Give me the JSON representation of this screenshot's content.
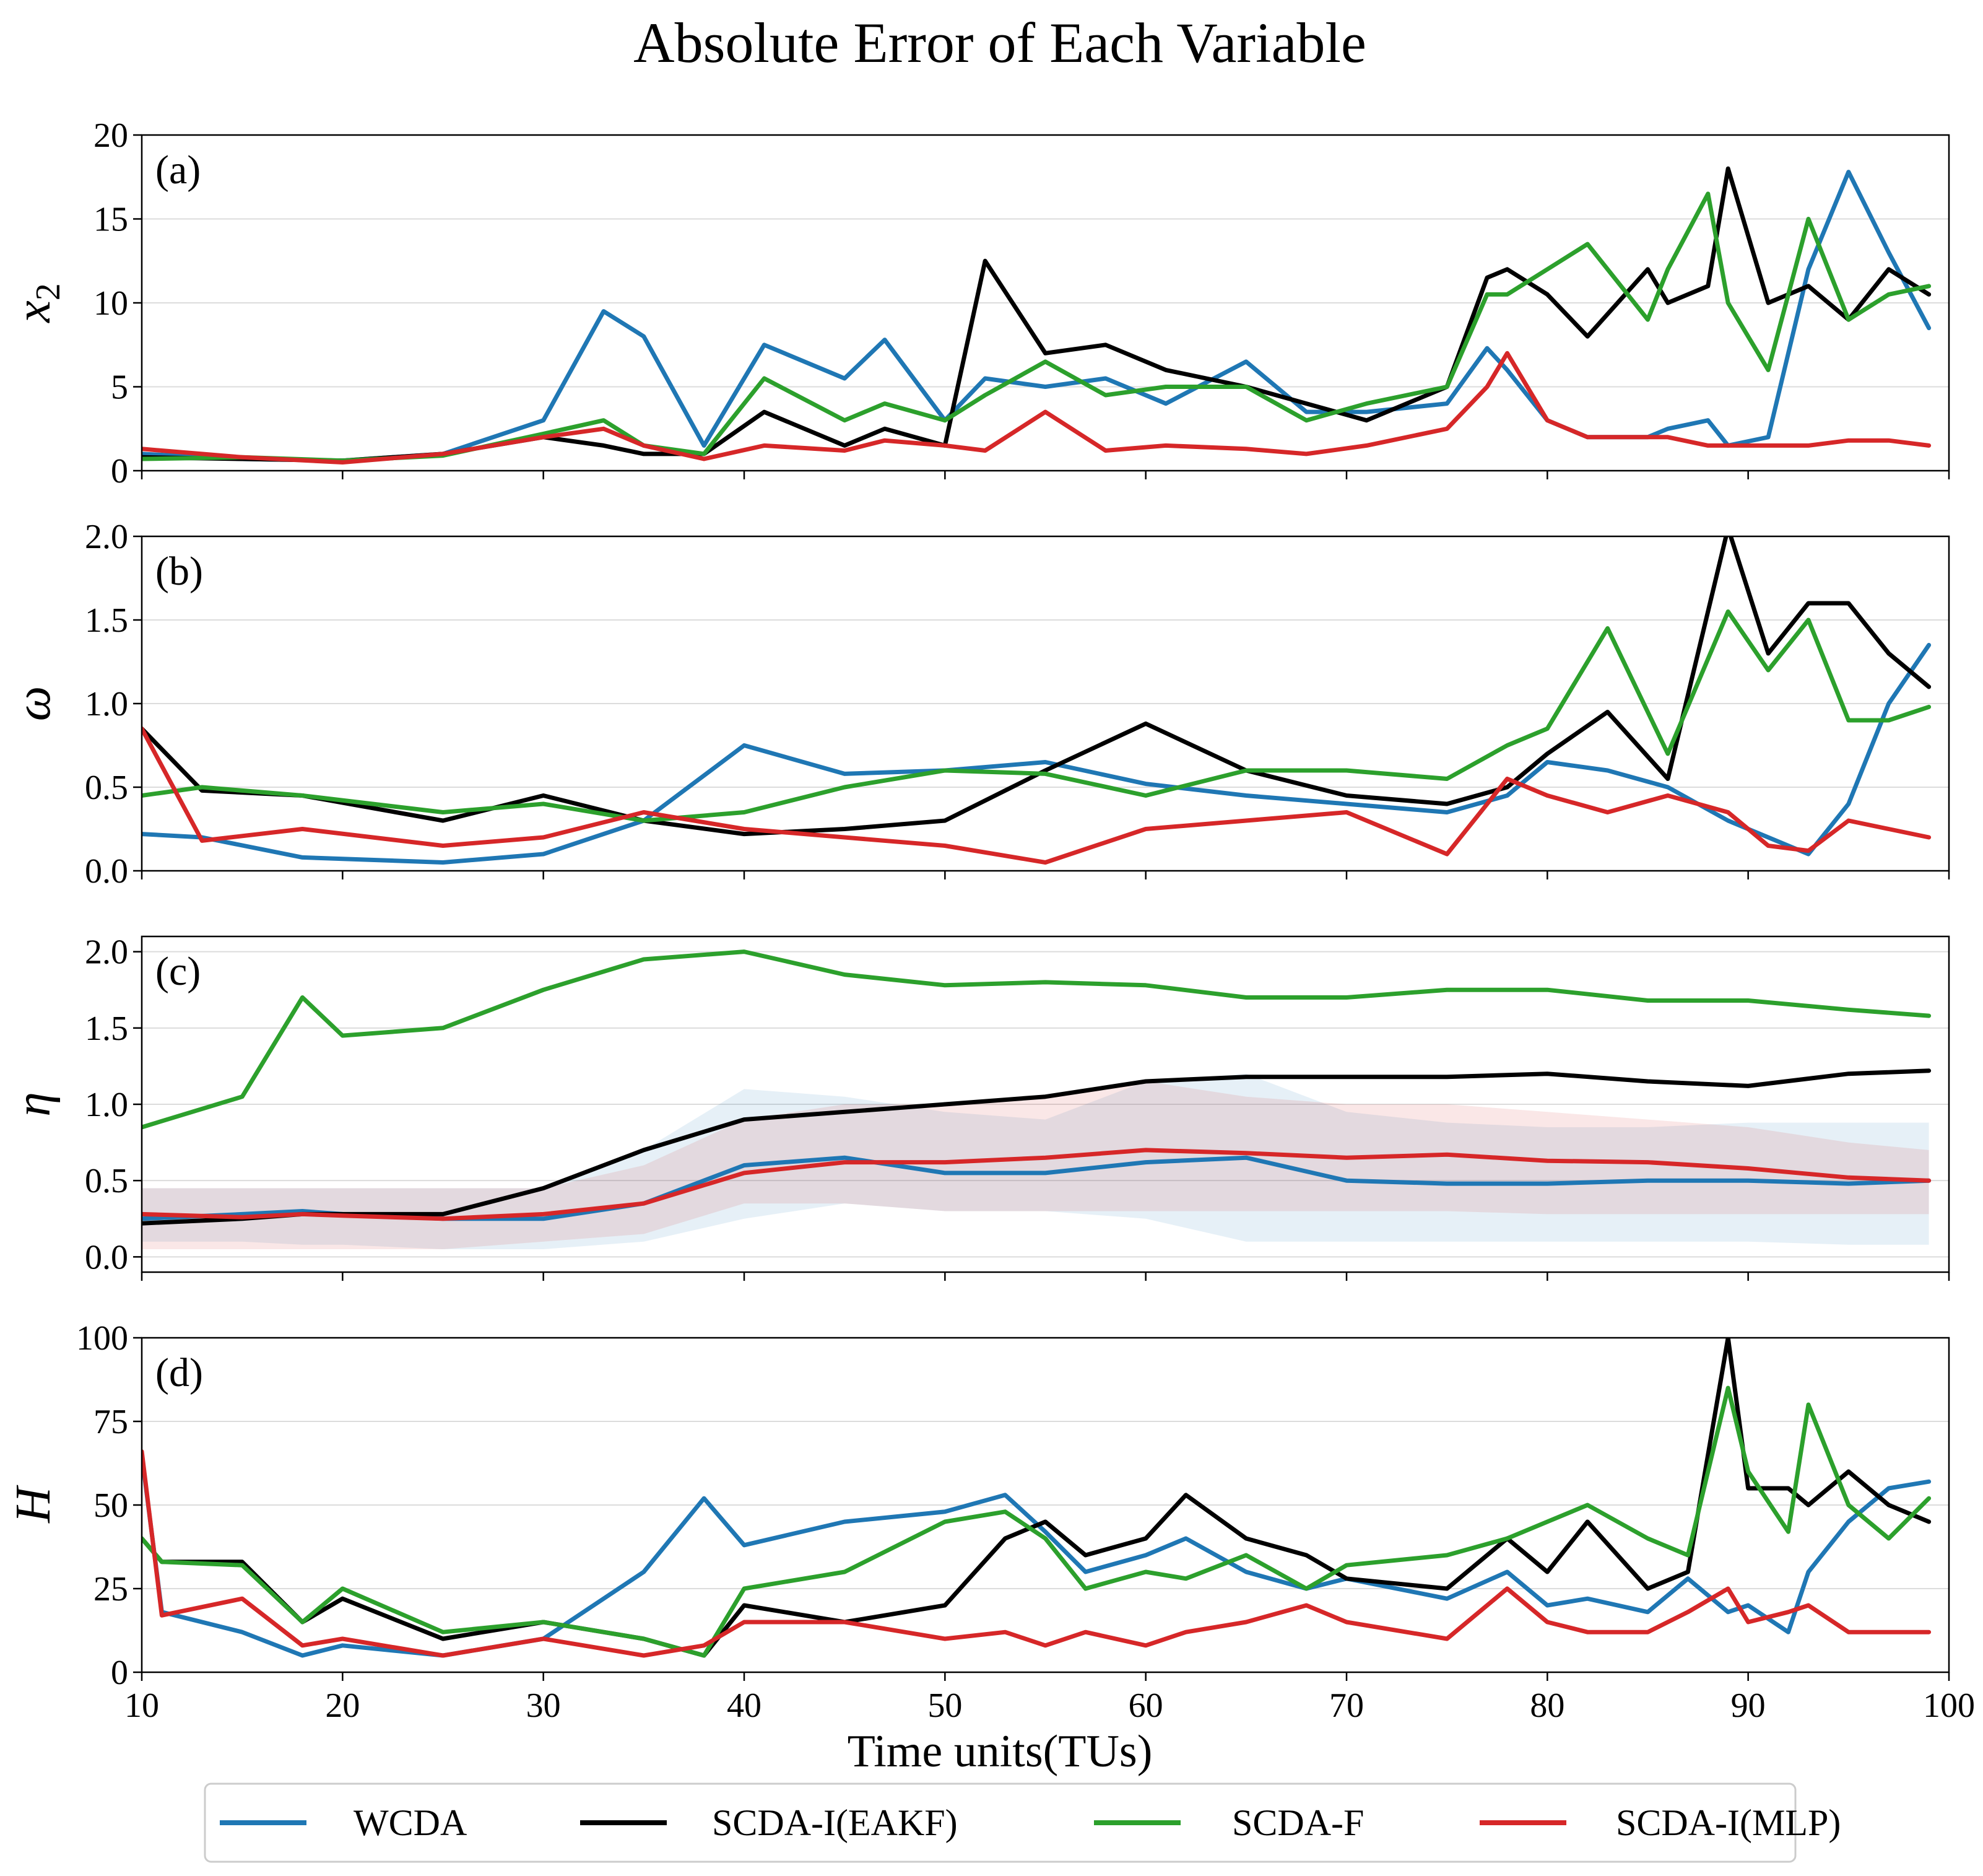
{
  "chart_data": {
    "type": "line",
    "title": "Absolute Error of Each Variable",
    "xlabel": "Time units(TUs)",
    "xlim": [
      10,
      100
    ],
    "xticks": [
      "10",
      "20",
      "30",
      "40",
      "50",
      "60",
      "70",
      "80",
      "90",
      "100"
    ],
    "legend": {
      "placement": "bottom-center",
      "entries": [
        "WCDA",
        "SCDA-I(EAKF)",
        "SCDA-F",
        "SCDA-I(MLP)"
      ]
    },
    "colors": {
      "WCDA": "#1f77b4",
      "SCDA-I(EAKF)": "#000000",
      "SCDA-F": "#2ca02c",
      "SCDA-I(MLP)": "#d62728"
    },
    "panels": [
      {
        "label": "(a)",
        "ylabel": "x",
        "ylabel_sub": "2",
        "ylim": [
          0,
          20
        ],
        "yticks": [
          "0",
          "5",
          "10",
          "15",
          "20"
        ],
        "x": [
          10,
          15,
          20,
          25,
          30,
          33,
          35,
          38,
          41,
          45,
          47,
          50,
          52,
          55,
          58,
          61,
          65,
          68,
          71,
          75,
          77,
          78,
          80,
          82,
          85,
          86,
          88,
          89,
          91,
          93,
          95,
          97,
          99
        ],
        "series": [
          {
            "name": "WCDA",
            "values": [
              1.0,
              0.7,
              0.6,
              1.0,
              3.0,
              9.5,
              8.0,
              1.5,
              7.5,
              5.5,
              7.8,
              3.0,
              5.5,
              5.0,
              5.5,
              4.0,
              6.5,
              3.5,
              3.5,
              4.0,
              7.3,
              6.0,
              3.0,
              2.0,
              2.0,
              2.5,
              3.0,
              1.5,
              2.0,
              12.0,
              17.8,
              13.0,
              8.5
            ]
          },
          {
            "name": "SCDA-I(EAKF)",
            "values": [
              0.8,
              0.7,
              0.6,
              1.0,
              2.0,
              1.5,
              1.0,
              1.0,
              3.5,
              1.5,
              2.5,
              1.5,
              12.5,
              7.0,
              7.5,
              6.0,
              5.0,
              4.0,
              3.0,
              5.0,
              11.5,
              12.0,
              10.5,
              8.0,
              12.0,
              10.0,
              11.0,
              18.0,
              10.0,
              11.0,
              9.0,
              12.0,
              10.5
            ]
          },
          {
            "name": "SCDA-F",
            "values": [
              0.7,
              0.8,
              0.6,
              0.9,
              2.2,
              3.0,
              1.5,
              1.0,
              5.5,
              3.0,
              4.0,
              3.0,
              4.5,
              6.5,
              4.5,
              5.0,
              5.0,
              3.0,
              4.0,
              5.0,
              10.5,
              10.5,
              12.0,
              13.5,
              9.0,
              12.0,
              16.5,
              10.0,
              6.0,
              15.0,
              9.0,
              10.5,
              11.0
            ]
          },
          {
            "name": "SCDA-I(MLP)",
            "values": [
              1.3,
              0.8,
              0.5,
              1.0,
              2.0,
              2.5,
              1.5,
              0.7,
              1.5,
              1.2,
              1.8,
              1.5,
              1.2,
              3.5,
              1.2,
              1.5,
              1.3,
              1.0,
              1.5,
              2.5,
              5.0,
              7.0,
              3.0,
              2.0,
              2.0,
              2.0,
              1.5,
              1.5,
              1.5,
              1.5,
              1.8,
              1.8,
              1.5
            ]
          }
        ]
      },
      {
        "label": "(b)",
        "ylabel": "ω",
        "ylabel_sub": "",
        "ylim": [
          0,
          2
        ],
        "yticks": [
          "0.0",
          "0.5",
          "1.0",
          "1.5",
          "2.0"
        ],
        "x": [
          10,
          13,
          18,
          25,
          30,
          35,
          40,
          45,
          50,
          55,
          60,
          65,
          70,
          75,
          78,
          80,
          83,
          86,
          89,
          91,
          93,
          95,
          97,
          99
        ],
        "series": [
          {
            "name": "WCDA",
            "values": [
              0.22,
              0.2,
              0.08,
              0.05,
              0.1,
              0.3,
              0.75,
              0.58,
              0.6,
              0.65,
              0.52,
              0.45,
              0.4,
              0.35,
              0.45,
              0.65,
              0.6,
              0.5,
              0.3,
              0.2,
              0.1,
              0.4,
              1.0,
              1.35
            ]
          },
          {
            "name": "SCDA-I(EAKF)",
            "values": [
              0.85,
              0.48,
              0.45,
              0.3,
              0.45,
              0.3,
              0.22,
              0.25,
              0.3,
              0.6,
              0.88,
              0.6,
              0.45,
              0.4,
              0.5,
              0.7,
              0.95,
              0.55,
              2.05,
              1.3,
              1.6,
              1.6,
              1.3,
              1.1
            ]
          },
          {
            "name": "SCDA-F",
            "values": [
              0.45,
              0.5,
              0.45,
              0.35,
              0.4,
              0.3,
              0.35,
              0.5,
              0.6,
              0.58,
              0.45,
              0.6,
              0.6,
              0.55,
              0.75,
              0.85,
              1.45,
              0.7,
              1.55,
              1.2,
              1.5,
              0.9,
              0.9,
              0.98
            ]
          },
          {
            "name": "SCDA-I(MLP)",
            "values": [
              0.85,
              0.18,
              0.25,
              0.15,
              0.2,
              0.35,
              0.25,
              0.2,
              0.15,
              0.05,
              0.25,
              0.3,
              0.35,
              0.1,
              0.55,
              0.45,
              0.35,
              0.45,
              0.35,
              0.15,
              0.12,
              0.3,
              0.25,
              0.2
            ]
          }
        ]
      },
      {
        "label": "(c)",
        "ylabel": "η",
        "ylabel_sub": "",
        "ylim": [
          -0.1,
          2.1
        ],
        "yticks": [
          "0.0",
          "0.5",
          "1.0",
          "1.5",
          "2.0"
        ],
        "x": [
          10,
          15,
          18,
          20,
          25,
          30,
          35,
          40,
          45,
          50,
          55,
          60,
          65,
          70,
          75,
          80,
          85,
          90,
          95,
          99
        ],
        "series": [
          {
            "name": "WCDA",
            "values": [
              0.25,
              0.28,
              0.3,
              0.28,
              0.25,
              0.25,
              0.35,
              0.6,
              0.65,
              0.55,
              0.55,
              0.62,
              0.65,
              0.5,
              0.48,
              0.48,
              0.5,
              0.5,
              0.48,
              0.5
            ]
          },
          {
            "name": "SCDA-I(EAKF)",
            "values": [
              0.22,
              0.25,
              0.28,
              0.28,
              0.28,
              0.45,
              0.7,
              0.9,
              0.95,
              1.0,
              1.05,
              1.15,
              1.18,
              1.18,
              1.18,
              1.2,
              1.15,
              1.12,
              1.2,
              1.22
            ]
          },
          {
            "name": "SCDA-F",
            "values": [
              0.85,
              1.05,
              1.7,
              1.45,
              1.5,
              1.75,
              1.95,
              2.0,
              1.85,
              1.78,
              1.8,
              1.78,
              1.7,
              1.7,
              1.75,
              1.75,
              1.68,
              1.68,
              1.62,
              1.58
            ]
          },
          {
            "name": "SCDA-I(MLP)",
            "values": [
              0.28,
              0.26,
              0.28,
              0.27,
              0.25,
              0.28,
              0.35,
              0.55,
              0.62,
              0.62,
              0.65,
              0.7,
              0.68,
              0.65,
              0.67,
              0.63,
              0.62,
              0.58,
              0.52,
              0.5
            ]
          }
        ],
        "bands": [
          {
            "name": "WCDA",
            "lower": [
              0.1,
              0.1,
              0.08,
              0.08,
              0.05,
              0.05,
              0.1,
              0.25,
              0.35,
              0.3,
              0.3,
              0.25,
              0.1,
              0.1,
              0.1,
              0.1,
              0.1,
              0.1,
              0.08,
              0.08
            ],
            "upper": [
              0.45,
              0.45,
              0.45,
              0.45,
              0.45,
              0.45,
              0.7,
              1.1,
              1.05,
              0.95,
              0.9,
              1.15,
              1.2,
              0.95,
              0.88,
              0.85,
              0.85,
              0.88,
              0.88,
              0.88
            ]
          },
          {
            "name": "SCDA-I(MLP)",
            "lower": [
              0.05,
              0.05,
              0.05,
              0.05,
              0.05,
              0.1,
              0.15,
              0.35,
              0.35,
              0.3,
              0.3,
              0.3,
              0.3,
              0.3,
              0.3,
              0.28,
              0.28,
              0.28,
              0.28,
              0.28
            ],
            "upper": [
              0.45,
              0.45,
              0.45,
              0.45,
              0.45,
              0.45,
              0.6,
              0.9,
              1.0,
              1.0,
              1.05,
              1.15,
              1.05,
              1.0,
              1.0,
              0.95,
              0.9,
              0.85,
              0.75,
              0.7
            ]
          }
        ]
      },
      {
        "label": "(d)",
        "ylabel": "H",
        "ylabel_sub": "",
        "ylim": [
          0,
          100
        ],
        "yticks": [
          "0",
          "25",
          "50",
          "75",
          "100"
        ],
        "x": [
          10,
          11,
          15,
          18,
          20,
          25,
          30,
          35,
          38,
          40,
          45,
          50,
          53,
          55,
          57,
          60,
          62,
          65,
          68,
          70,
          75,
          78,
          80,
          82,
          85,
          87,
          89,
          90,
          92,
          93,
          95,
          97,
          99
        ],
        "series": [
          {
            "name": "WCDA",
            "values": [
              65,
              18,
              12,
              5,
              8,
              5,
              10,
              30,
              52,
              38,
              45,
              48,
              53,
              42,
              30,
              35,
              40,
              30,
              25,
              28,
              22,
              30,
              20,
              22,
              18,
              28,
              18,
              20,
              12,
              30,
              45,
              55,
              57
            ]
          },
          {
            "name": "SCDA-I(EAKF)",
            "values": [
              40,
              33,
              33,
              15,
              22,
              10,
              15,
              10,
              5,
              20,
              15,
              20,
              40,
              45,
              35,
              40,
              53,
              40,
              35,
              28,
              25,
              40,
              30,
              45,
              25,
              30,
              100,
              55,
              55,
              50,
              60,
              50,
              45
            ]
          },
          {
            "name": "SCDA-F",
            "values": [
              40,
              33,
              32,
              15,
              25,
              12,
              15,
              10,
              5,
              25,
              30,
              45,
              48,
              40,
              25,
              30,
              28,
              35,
              25,
              32,
              35,
              40,
              45,
              50,
              40,
              35,
              85,
              60,
              42,
              80,
              50,
              40,
              52
            ]
          },
          {
            "name": "SCDA-I(MLP)",
            "values": [
              66,
              17,
              22,
              8,
              10,
              5,
              10,
              5,
              8,
              15,
              15,
              10,
              12,
              8,
              12,
              8,
              12,
              15,
              20,
              15,
              10,
              25,
              15,
              12,
              12,
              18,
              25,
              15,
              18,
              20,
              12,
              12,
              12
            ]
          }
        ]
      }
    ]
  }
}
